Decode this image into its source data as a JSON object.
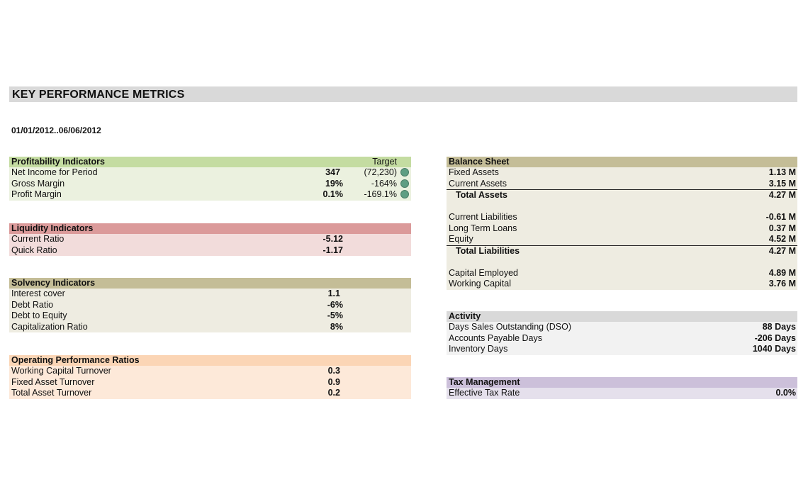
{
  "title": "KEY PERFORMANCE METRICS",
  "date_range": "01/01/2012..06/06/2012",
  "colors": {
    "profitability_head": "#c4dca1",
    "profitability_body": "#ebf1df",
    "liquidity_head": "#db9a9a",
    "liquidity_body": "#f2dcdb",
    "solvency_head": "#c4bd97",
    "solvency_body": "#eeece1",
    "operating_head": "#fbd5b5",
    "operating_body": "#fde9d9",
    "balance_head": "#c4bd97",
    "balance_body": "#eeece1",
    "activity_head": "#d9d9d9",
    "activity_body": "#f2f2f2",
    "tax_head": "#ccc0da",
    "tax_body": "#e5e0ec",
    "indicator": "#5f9e83"
  },
  "profitability": {
    "title": "Profitability Indicators",
    "target_label": "Target",
    "rows": [
      {
        "label": "Net Income for Period",
        "value": "347",
        "target": "(72,230)",
        "indicator": "green-circle-icon"
      },
      {
        "label": "Gross Margin",
        "value": "19%",
        "target": "-164%",
        "indicator": "green-circle-icon"
      },
      {
        "label": "Profit Margin",
        "value": "0.1%",
        "target": "-169.1%",
        "indicator": "green-circle-icon"
      }
    ]
  },
  "liquidity": {
    "title": "Liquidity Indicators",
    "rows": [
      {
        "label": "Current Ratio",
        "value": "-5.12"
      },
      {
        "label": "Quick Ratio",
        "value": "-1.17"
      }
    ]
  },
  "solvency": {
    "title": "Solvency Indicators",
    "rows": [
      {
        "label": "Interest cover",
        "value": "1.1"
      },
      {
        "label": "Debt Ratio",
        "value": "-6%"
      },
      {
        "label": "Debt to Equity",
        "value": "-5%"
      },
      {
        "label": "Capitalization Ratio",
        "value": "8%"
      }
    ]
  },
  "operating": {
    "title": "Operating Performance Ratios",
    "rows": [
      {
        "label": "Working Capital Turnover",
        "value": "0.3"
      },
      {
        "label": "Fixed Asset Turnover",
        "value": "0.9"
      },
      {
        "label": "Total Asset Turnover",
        "value": "0.2"
      }
    ]
  },
  "balance_sheet": {
    "title": "Balance Sheet",
    "fixed_assets": {
      "label": "Fixed Assets",
      "value": "1.13 M"
    },
    "current_assets": {
      "label": "Current Assets",
      "value": "3.15 M"
    },
    "total_assets": {
      "label": "Total Assets",
      "value": "4.27 M"
    },
    "current_liabilities": {
      "label": "Current Liabilities",
      "value": "-0.61 M"
    },
    "long_term_loans": {
      "label": "Long Term Loans",
      "value": "0.37 M"
    },
    "equity": {
      "label": "Equity",
      "value": "4.52 M"
    },
    "total_liabilities": {
      "label": "Total Liabilities",
      "value": "4.27 M"
    },
    "capital_employed": {
      "label": "Capital Employed",
      "value": "4.89 M"
    },
    "working_capital": {
      "label": "Working Capital",
      "value": "3.76 M"
    }
  },
  "activity": {
    "title": "Activity",
    "rows": [
      {
        "label": "Days Sales Outstanding (DSO)",
        "value": "88 Days"
      },
      {
        "label": "Accounts Payable Days",
        "value": "-206 Days"
      },
      {
        "label": "Inventory Days",
        "value": "1040 Days"
      }
    ]
  },
  "tax": {
    "title": "Tax Management",
    "rows": [
      {
        "label": "Effective Tax Rate",
        "value": "0.0%"
      }
    ]
  }
}
